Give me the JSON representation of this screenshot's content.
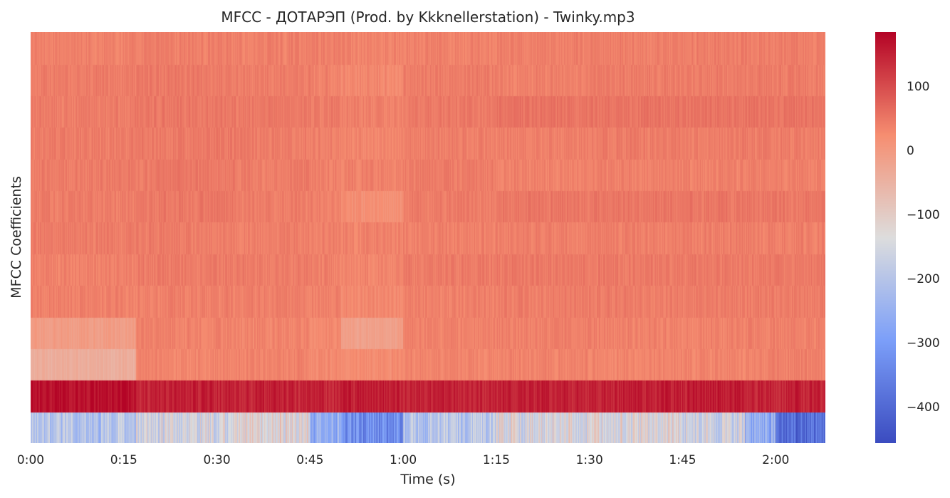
{
  "chart_data": {
    "type": "heatmap",
    "title": "MFCC - ДОТАРЭП (Prod. by Kkknellerstation) - Twinky.mp3",
    "xlabel": "Time (s)",
    "ylabel": "MFCC Coefficients",
    "x_range_seconds": [
      0,
      128
    ],
    "x_ticks": [
      {
        "seconds": 0,
        "label": "0:00"
      },
      {
        "seconds": 15,
        "label": "0:15"
      },
      {
        "seconds": 30,
        "label": "0:30"
      },
      {
        "seconds": 45,
        "label": "0:45"
      },
      {
        "seconds": 60,
        "label": "1:00"
      },
      {
        "seconds": 75,
        "label": "1:15"
      },
      {
        "seconds": 90,
        "label": "1:30"
      },
      {
        "seconds": 105,
        "label": "1:45"
      },
      {
        "seconds": 120,
        "label": "2:00"
      }
    ],
    "colormap": "coolwarm",
    "color_range": [
      -455,
      185
    ],
    "colorbar_ticks": [
      {
        "value": 100,
        "label": "100"
      },
      {
        "value": 0,
        "label": "0"
      },
      {
        "value": -100,
        "label": "−100"
      },
      {
        "value": -200,
        "label": "−200"
      },
      {
        "value": -300,
        "label": "−300"
      },
      {
        "value": -400,
        "label": "−400"
      }
    ],
    "coefficients": 13,
    "coefficient_order": "row 0 at bottom (lowest coefficient) to row 12 at top",
    "segment_time_edges_seconds": [
      0,
      17,
      33,
      45,
      50,
      60,
      75,
      90,
      105,
      115,
      120,
      128
    ],
    "mean_values_by_coefficient": [
      [
        -200,
        -150,
        -120,
        -250,
        -330,
        -200,
        -140,
        -130,
        -160,
        -260,
        -400
      ],
      [
        175,
        150,
        150,
        145,
        155,
        150,
        150,
        152,
        155,
        150,
        150
      ],
      [
        -40,
        35,
        38,
        30,
        25,
        35,
        38,
        35,
        35,
        40,
        40
      ],
      [
        -5,
        38,
        35,
        30,
        -10,
        38,
        40,
        40,
        38,
        40,
        40
      ],
      [
        40,
        40,
        42,
        40,
        30,
        40,
        45,
        45,
        45,
        45,
        45
      ],
      [
        40,
        45,
        45,
        40,
        35,
        45,
        48,
        48,
        48,
        48,
        48
      ],
      [
        45,
        45,
        42,
        40,
        38,
        40,
        42,
        42,
        42,
        42,
        42
      ],
      [
        45,
        50,
        45,
        40,
        20,
        45,
        52,
        52,
        52,
        52,
        52
      ],
      [
        45,
        48,
        45,
        42,
        40,
        45,
        38,
        40,
        40,
        40,
        40
      ],
      [
        45,
        48,
        45,
        40,
        35,
        42,
        42,
        45,
        45,
        45,
        45
      ],
      [
        45,
        50,
        48,
        45,
        40,
        48,
        55,
        55,
        55,
        55,
        55
      ],
      [
        45,
        48,
        45,
        40,
        30,
        45,
        40,
        45,
        45,
        45,
        45
      ],
      [
        40,
        42,
        40,
        40,
        38,
        40,
        42,
        42,
        42,
        42,
        42
      ]
    ]
  }
}
